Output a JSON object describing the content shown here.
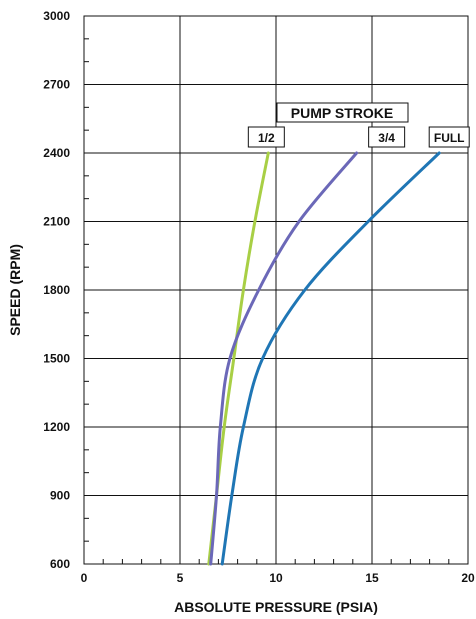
{
  "chart_data": {
    "type": "line",
    "title": "",
    "xlabel": "ABSOLUTE PRESSURE (PSIA)",
    "ylabel": "SPEED  (RPM)",
    "xlim": [
      0,
      20
    ],
    "ylim": [
      600,
      3000
    ],
    "x_ticks": [
      "0",
      "5",
      "10",
      "15",
      "20"
    ],
    "y_ticks": [
      "600",
      "900",
      "1200",
      "1500",
      "1800",
      "2100",
      "2400",
      "2700",
      "3000"
    ],
    "x_tick_values": [
      0,
      5,
      10,
      15,
      20
    ],
    "y_tick_values": [
      600,
      900,
      1200,
      1500,
      1800,
      2100,
      2400,
      2700,
      3000
    ],
    "grid": true,
    "annotation_title": "PUMP STROKE",
    "series": [
      {
        "name": "1/2",
        "color": "#a8cf45",
        "points": [
          [
            6.5,
            600
          ],
          [
            6.9,
            900
          ],
          [
            7.3,
            1200
          ],
          [
            7.8,
            1500
          ],
          [
            8.3,
            1800
          ],
          [
            8.9,
            2100
          ],
          [
            9.6,
            2400
          ]
        ]
      },
      {
        "name": "3/4",
        "color": "#6b68b8",
        "points": [
          [
            6.6,
            600
          ],
          [
            6.9,
            900
          ],
          [
            7.1,
            1200
          ],
          [
            7.6,
            1500
          ],
          [
            9.1,
            1800
          ],
          [
            11.2,
            2100
          ],
          [
            14.2,
            2400
          ]
        ]
      },
      {
        "name": "FULL",
        "color": "#1f76b5",
        "points": [
          [
            7.2,
            600
          ],
          [
            7.7,
            900
          ],
          [
            8.3,
            1200
          ],
          [
            9.3,
            1500
          ],
          [
            11.5,
            1800
          ],
          [
            14.8,
            2100
          ],
          [
            18.5,
            2400
          ]
        ]
      }
    ]
  }
}
